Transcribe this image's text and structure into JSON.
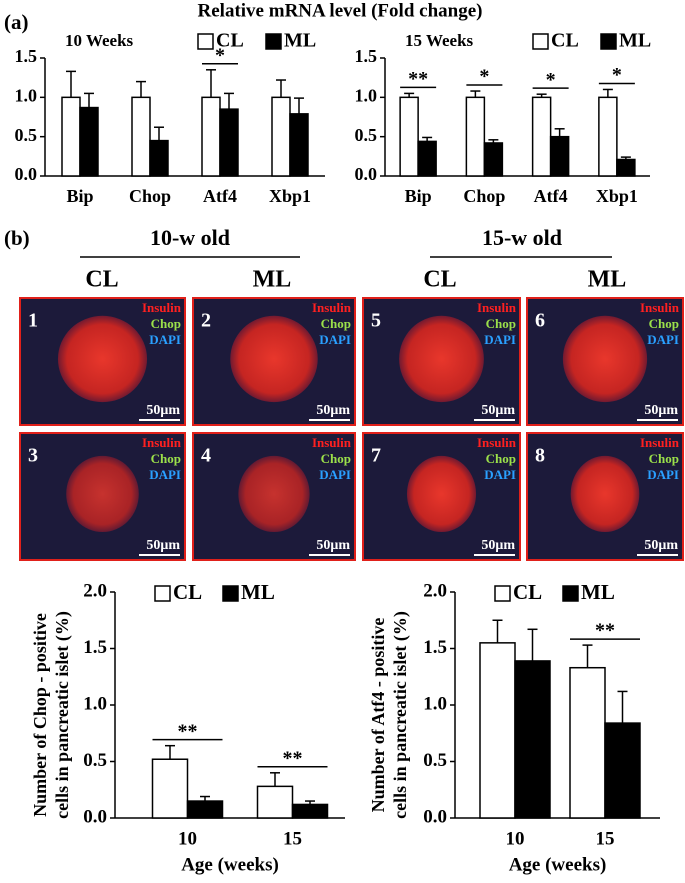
{
  "figure": {
    "title": "Relative mRNA level (Fold change)",
    "panel_a": "(a)",
    "panel_b": "(b)",
    "groups": [
      {
        "label": "10-w old",
        "columns": [
          "CL",
          "ML"
        ]
      },
      {
        "label": "15-w old",
        "columns": [
          "CL",
          "ML"
        ]
      }
    ],
    "images": [
      {
        "number": "1",
        "stains": [
          "Insulin",
          "Chop",
          "DAPI"
        ],
        "scale": "50μm"
      },
      {
        "number": "2",
        "stains": [
          "Insulin",
          "Chop",
          "DAPI"
        ],
        "scale": "50μm"
      },
      {
        "number": "5",
        "stains": [
          "Insulin",
          "Chop",
          "DAPI"
        ],
        "scale": "50μm"
      },
      {
        "number": "6",
        "stains": [
          "Insulin",
          "Chop",
          "DAPI"
        ],
        "scale": "50μm"
      },
      {
        "number": "3",
        "stains": [
          "Insulin",
          "Chop",
          "DAPI"
        ],
        "scale": "50μm"
      },
      {
        "number": "4",
        "stains": [
          "Insulin",
          "Chop",
          "DAPI"
        ],
        "scale": "50μm"
      },
      {
        "number": "7",
        "stains": [
          "Insulin",
          "Chop",
          "DAPI"
        ],
        "scale": "50μm"
      },
      {
        "number": "8",
        "stains": [
          "Insulin",
          "Chop",
          "DAPI"
        ],
        "scale": "50μm"
      }
    ]
  },
  "chart_data": [
    {
      "type": "bar",
      "title": "10 Weeks",
      "categories": [
        "Bip",
        "Chop",
        "Atf4",
        "Xbp1"
      ],
      "series": [
        {
          "name": "CL",
          "color": "#ffffff",
          "values": [
            1.0,
            1.0,
            1.0,
            1.0
          ],
          "errors": [
            0.33,
            0.2,
            0.35,
            0.22
          ]
        },
        {
          "name": "ML",
          "color": "#000000",
          "values": [
            0.87,
            0.45,
            0.85,
            0.79
          ],
          "errors": [
            0.18,
            0.17,
            0.2,
            0.2
          ]
        }
      ],
      "ylim": [
        0,
        1.5
      ],
      "yticks": [
        {
          "value": 0,
          "label": "0.0"
        },
        {
          "value": 0.5,
          "label": "0.5"
        },
        {
          "value": 1,
          "label": "1.0"
        },
        {
          "value": 1.5,
          "label": "1.5"
        }
      ],
      "annotations": [
        {
          "text": "*",
          "category": "Atf4"
        }
      ]
    },
    {
      "type": "bar",
      "title": "15 Weeks",
      "categories": [
        "Bip",
        "Chop",
        "Atf4",
        "Xbp1"
      ],
      "series": [
        {
          "name": "CL",
          "color": "#ffffff",
          "values": [
            1.0,
            1.0,
            1.0,
            1.0
          ],
          "errors": [
            0.05,
            0.08,
            0.04,
            0.1
          ]
        },
        {
          "name": "ML",
          "color": "#000000",
          "values": [
            0.44,
            0.42,
            0.5,
            0.21
          ],
          "errors": [
            0.05,
            0.04,
            0.1,
            0.03
          ]
        }
      ],
      "ylim": [
        0,
        1.5
      ],
      "yticks": [
        {
          "value": 0,
          "label": "0.0"
        },
        {
          "value": 0.5,
          "label": "0.5"
        },
        {
          "value": 1,
          "label": "1.0"
        },
        {
          "value": 1.5,
          "label": "1.5"
        }
      ],
      "annotations": [
        {
          "text": "**",
          "category": "Bip"
        },
        {
          "text": "*",
          "category": "Chop"
        },
        {
          "text": "*",
          "category": "Atf4"
        },
        {
          "text": "*",
          "category": "Xbp1"
        }
      ]
    },
    {
      "type": "bar",
      "categories": [
        "10",
        "15"
      ],
      "xlabel": "Age (weeks)",
      "ylabel": [
        "Number of Chop - positive",
        "cells in pancreatic islet (%)"
      ],
      "series": [
        {
          "name": "CL",
          "color": "#ffffff",
          "values": [
            0.52,
            0.28
          ],
          "errors": [
            0.12,
            0.12
          ]
        },
        {
          "name": "ML",
          "color": "#000000",
          "values": [
            0.15,
            0.12
          ],
          "errors": [
            0.04,
            0.03
          ]
        }
      ],
      "ylim": [
        0,
        2
      ],
      "yticks": [
        {
          "value": 0,
          "label": "0.0"
        },
        {
          "value": 0.5,
          "label": "0.5"
        },
        {
          "value": 1,
          "label": "1.0"
        },
        {
          "value": 1.5,
          "label": "1.5"
        },
        {
          "value": 2,
          "label": "2.0"
        }
      ],
      "annotations": [
        {
          "text": "**",
          "category": "10"
        },
        {
          "text": "**",
          "category": "15"
        }
      ]
    },
    {
      "type": "bar",
      "categories": [
        "10",
        "15"
      ],
      "xlabel": "Age (weeks)",
      "ylabel": [
        "Number of Atf4 - positive",
        "cells in pancreatic islet (%)"
      ],
      "series": [
        {
          "name": "CL",
          "color": "#ffffff",
          "values": [
            1.55,
            1.33
          ],
          "errors": [
            0.2,
            0.2
          ]
        },
        {
          "name": "ML",
          "color": "#000000",
          "values": [
            1.39,
            0.84
          ],
          "errors": [
            0.28,
            0.28
          ]
        }
      ],
      "ylim": [
        0,
        2
      ],
      "yticks": [
        {
          "value": 0,
          "label": "0.0"
        },
        {
          "value": 0.5,
          "label": "0.5"
        },
        {
          "value": 1,
          "label": "1.0"
        },
        {
          "value": 1.5,
          "label": "1.5"
        },
        {
          "value": 2,
          "label": "2.0"
        }
      ],
      "annotations": [
        {
          "text": "**",
          "category": "15"
        }
      ]
    }
  ]
}
